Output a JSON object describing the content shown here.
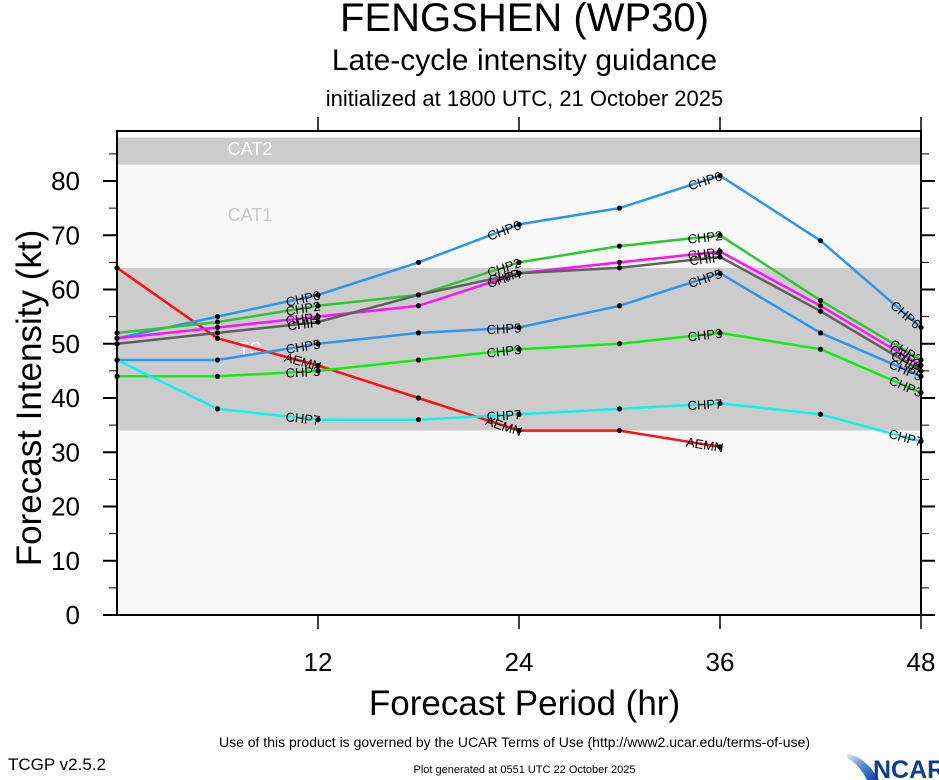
{
  "header": {
    "title": "FENGSHEN (WP30)",
    "subtitle": "Late-cycle intensity guidance",
    "initialized": "initialized at 1800 UTC, 21 October 2025"
  },
  "footer": {
    "terms": "Use of this product is governed by the UCAR Terms of Use (http://www2.ucar.edu/terms-of-use)",
    "generated": "Plot generated at 0551 UTC   22 October 2025",
    "version": "TCGP v2.5.2",
    "logo_text": "NCAR"
  },
  "chart_data": {
    "type": "line",
    "title": "FENGSHEN (WP30)",
    "subtitle": "Late-cycle intensity guidance",
    "xlabel": "Forecast Period (hr)",
    "ylabel": "Forecast Intensity (kt)",
    "xlim": [
      0,
      48
    ],
    "ylim": [
      0,
      88
    ],
    "xticks": [
      12,
      24,
      36,
      48
    ],
    "xtick_labels": [
      "12",
      "24",
      "36",
      "48"
    ],
    "yticks": [
      0,
      10,
      20,
      30,
      40,
      50,
      60,
      70,
      80
    ],
    "ytick_labels": [
      "0",
      "10",
      "20",
      "30",
      "40",
      "50",
      "60",
      "70",
      "80"
    ],
    "grid": false,
    "legend": "inline-labels",
    "x": [
      0,
      6,
      12,
      18,
      24,
      30,
      36,
      42,
      48
    ],
    "bands": [
      {
        "name": "TS",
        "from": 34,
        "to": 64,
        "color": "#cccccc",
        "label_color": "#ffffff"
      },
      {
        "name": "CAT1",
        "from": 64,
        "to": 83,
        "color": "#f8f8f8",
        "label_color": "#c8c8c8"
      },
      {
        "name": "CAT2",
        "from": 83,
        "to": 88,
        "color": "#cccccc",
        "label_color": "#ffffff"
      }
    ],
    "series": [
      {
        "name": "AEMN",
        "color": "#ff1010",
        "values": [
          64,
          51,
          46,
          40,
          34,
          34,
          31,
          null,
          null
        ]
      },
      {
        "name": "CHP6",
        "color": "#2b95f0",
        "values": [
          51,
          55,
          59,
          65,
          72,
          75,
          81,
          69,
          53
        ]
      },
      {
        "name": "CHP2",
        "color": "#2ec82e",
        "values": [
          52,
          54,
          57,
          59,
          65,
          68,
          70,
          58,
          47
        ]
      },
      {
        "name": "CHP4",
        "color": "#ff10ff",
        "values": [
          51,
          53,
          55,
          57,
          63,
          65,
          67,
          57,
          46
        ]
      },
      {
        "name": "CHIP",
        "color": "#606060",
        "values": [
          50,
          52,
          54,
          59,
          63,
          64,
          66,
          56,
          45
        ]
      },
      {
        "name": "CHP5",
        "color": "#2b95f0",
        "values": [
          47,
          47,
          50,
          52,
          53,
          57,
          63,
          52,
          44
        ]
      },
      {
        "name": "CHP3",
        "color": "#10ee10",
        "values": [
          44,
          44,
          45,
          47,
          49,
          50,
          52,
          49,
          41
        ]
      },
      {
        "name": "CHP7",
        "color": "#10f0f0",
        "values": [
          47,
          38,
          36,
          36,
          37,
          38,
          39,
          37,
          32
        ]
      }
    ]
  }
}
